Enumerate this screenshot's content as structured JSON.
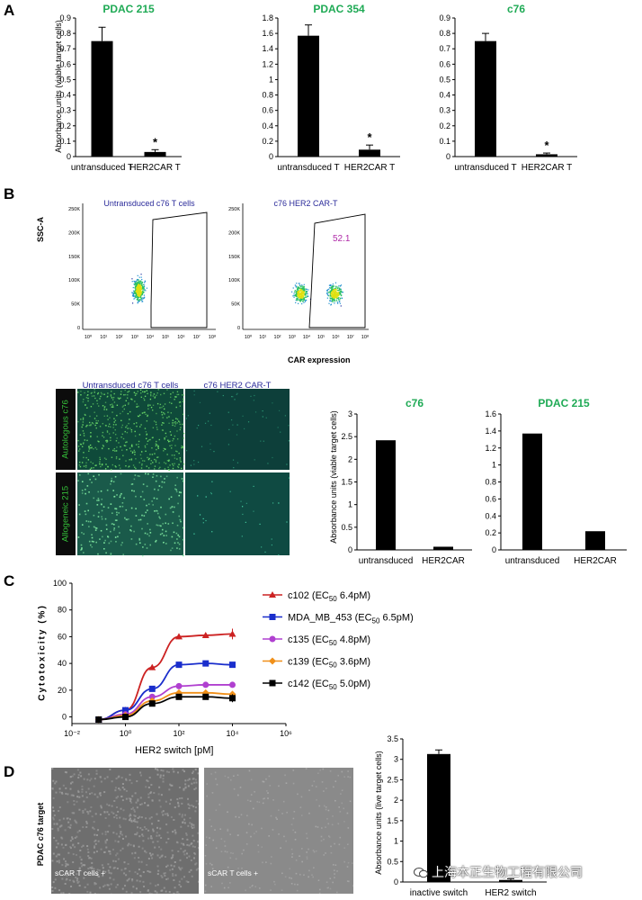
{
  "panels": {
    "A": "A",
    "B": "B",
    "C": "C",
    "D": "D"
  },
  "colors": {
    "green_title": "#1faa55",
    "flow_title": "#2a2a9a",
    "gate_pct": "#b02aa8",
    "c102": "#cc2222",
    "mda": "#1a2ecc",
    "c135": "#b040d0",
    "c139": "#f0901a",
    "c142": "#000000"
  },
  "panelA": {
    "y_axis_label": "Absorbance units (viable target cells)"
  },
  "panelB": {
    "flow_titles": [
      "Untransduced c76 T cells",
      "c76 HER2 CAR-T"
    ],
    "flow_ylabel": "SSC-A",
    "flow_xlabel": "CAR expression",
    "gate_percent": "52.1",
    "flow_yticks": [
      "250K",
      "200K",
      "150K",
      "100K",
      "50K",
      "0"
    ],
    "flow_xticks": [
      "10⁰",
      "10¹",
      "10²",
      "10³",
      "10⁴",
      "10⁵",
      "10⁶",
      "10⁷",
      "10⁸"
    ],
    "micro_col_titles": [
      "Untransduced c76 T cells",
      "c76 HER2 CAR-T"
    ],
    "micro_row_labels": [
      "Autologous c76",
      "Allogeneic 215"
    ],
    "y_axis_label": "Absorbance units (viable target cells)"
  },
  "panelC": {
    "ylabel": "Cytotoxicity (%)",
    "xlabel": "HER2 switch [pM]"
  },
  "panelD": {
    "row_label": "PDAC c76 target",
    "micro_labels": [
      "sCAR T cells +",
      "sCAR T cells +"
    ],
    "micro_sublabels": [
      "",
      ""
    ],
    "y_axis_label": "Absorbance units (live target cells)"
  },
  "watermark": "上海本正生物工程有限公司",
  "chart_data": [
    {
      "id": "A1",
      "type": "bar",
      "title": "PDAC 215",
      "categories": [
        "untransduced T",
        "HER2CAR T"
      ],
      "values": [
        0.75,
        0.03
      ],
      "errors": [
        0.09,
        0.015
      ],
      "significance": [
        "",
        "*"
      ],
      "ylim": [
        0,
        0.9
      ],
      "yticks": [
        "0",
        "0.1",
        "0.2",
        "0.3",
        "0.4",
        "0.5",
        "0.6",
        "0.7",
        "0.8",
        "0.9"
      ]
    },
    {
      "id": "A2",
      "type": "bar",
      "title": "PDAC 354",
      "categories": [
        "untransduced T",
        "HER2CAR T"
      ],
      "values": [
        1.57,
        0.09
      ],
      "errors": [
        0.14,
        0.06
      ],
      "significance": [
        "",
        "*"
      ],
      "ylim": [
        0,
        1.8
      ],
      "yticks": [
        "0",
        "0.2",
        "0.4",
        "0.6",
        "0.8",
        "1",
        "1.2",
        "1.4",
        "1.6",
        "1.8"
      ]
    },
    {
      "id": "A3",
      "type": "bar",
      "title": "c76",
      "categories": [
        "untransduced T",
        "HER2CAR T"
      ],
      "values": [
        0.75,
        0.015
      ],
      "errors": [
        0.05,
        0.008
      ],
      "significance": [
        "",
        "*"
      ],
      "ylim": [
        0,
        0.9
      ],
      "yticks": [
        "0",
        "0.1",
        "0.2",
        "0.3",
        "0.4",
        "0.5",
        "0.6",
        "0.7",
        "0.8",
        "0.9"
      ]
    },
    {
      "id": "B1",
      "type": "bar",
      "title": "c76",
      "categories": [
        "untransduced",
        "HER2CAR"
      ],
      "values": [
        2.42,
        0.07
      ],
      "ylim": [
        0,
        3
      ],
      "yticks": [
        "0",
        "0.5",
        "1",
        "1.5",
        "2",
        "2.5",
        "3"
      ]
    },
    {
      "id": "B2",
      "type": "bar",
      "title": "PDAC 215",
      "categories": [
        "untransduced",
        "HER2CAR"
      ],
      "values": [
        1.37,
        0.22
      ],
      "ylim": [
        0,
        1.6
      ],
      "yticks": [
        "0",
        "0.2",
        "0.4",
        "0.6",
        "0.8",
        "1",
        "1.2",
        "1.4",
        "1.6"
      ]
    },
    {
      "id": "C",
      "type": "line",
      "xscale": "log",
      "xlim": [
        0.01,
        1000000
      ],
      "ylim": [
        -5,
        100
      ],
      "xticks": [
        "10⁻²",
        "10⁰",
        "10²",
        "10⁴",
        "10⁶"
      ],
      "yticks": [
        "0",
        "20",
        "40",
        "60",
        "80",
        "100"
      ],
      "x": [
        0.1,
        1,
        10,
        100,
        1000,
        10000
      ],
      "series": [
        {
          "name": "c102 (EC",
          "name_sub": "50",
          "name_tail": " 6.4pM)",
          "marker": "triangle",
          "values": [
            -2,
            5,
            37,
            60,
            61,
            62
          ],
          "errors": [
            2,
            2,
            2,
            2,
            2,
            4
          ]
        },
        {
          "name": "MDA_MB_453 (EC",
          "name_sub": "50",
          "name_tail": " 6.5pM)",
          "marker": "square",
          "values": [
            -2,
            5,
            21,
            39,
            40,
            39
          ],
          "errors": [
            2,
            2,
            2,
            2,
            2,
            2
          ]
        },
        {
          "name": "c135 (EC",
          "name_sub": "50",
          "name_tail": " 4.8pM)",
          "marker": "circle",
          "values": [
            -2,
            2,
            15,
            23,
            24,
            24
          ],
          "errors": [
            2,
            2,
            2,
            2,
            2,
            2
          ]
        },
        {
          "name": "c139 (EC",
          "name_sub": "50",
          "name_tail": " 3.6pM)",
          "marker": "diamond",
          "values": [
            -2,
            1,
            12,
            18,
            18,
            17
          ],
          "errors": [
            2,
            2,
            2,
            2,
            2,
            2
          ]
        },
        {
          "name": "c142 (EC",
          "name_sub": "50",
          "name_tail": " 5.0pM)",
          "marker": "square",
          "values": [
            -2,
            0,
            10,
            15,
            15,
            14
          ],
          "errors": [
            2,
            2,
            2,
            2,
            2,
            3
          ]
        }
      ]
    },
    {
      "id": "D",
      "type": "bar",
      "categories": [
        "inactive switch",
        "HER2 switch"
      ],
      "values": [
        3.13,
        0.05
      ],
      "errors": [
        0.1,
        0.03
      ],
      "ylim": [
        0,
        3.5
      ],
      "yticks": [
        "0",
        "0.5",
        "1",
        "1.5",
        "2",
        "2.5",
        "3",
        "3.5"
      ]
    }
  ]
}
